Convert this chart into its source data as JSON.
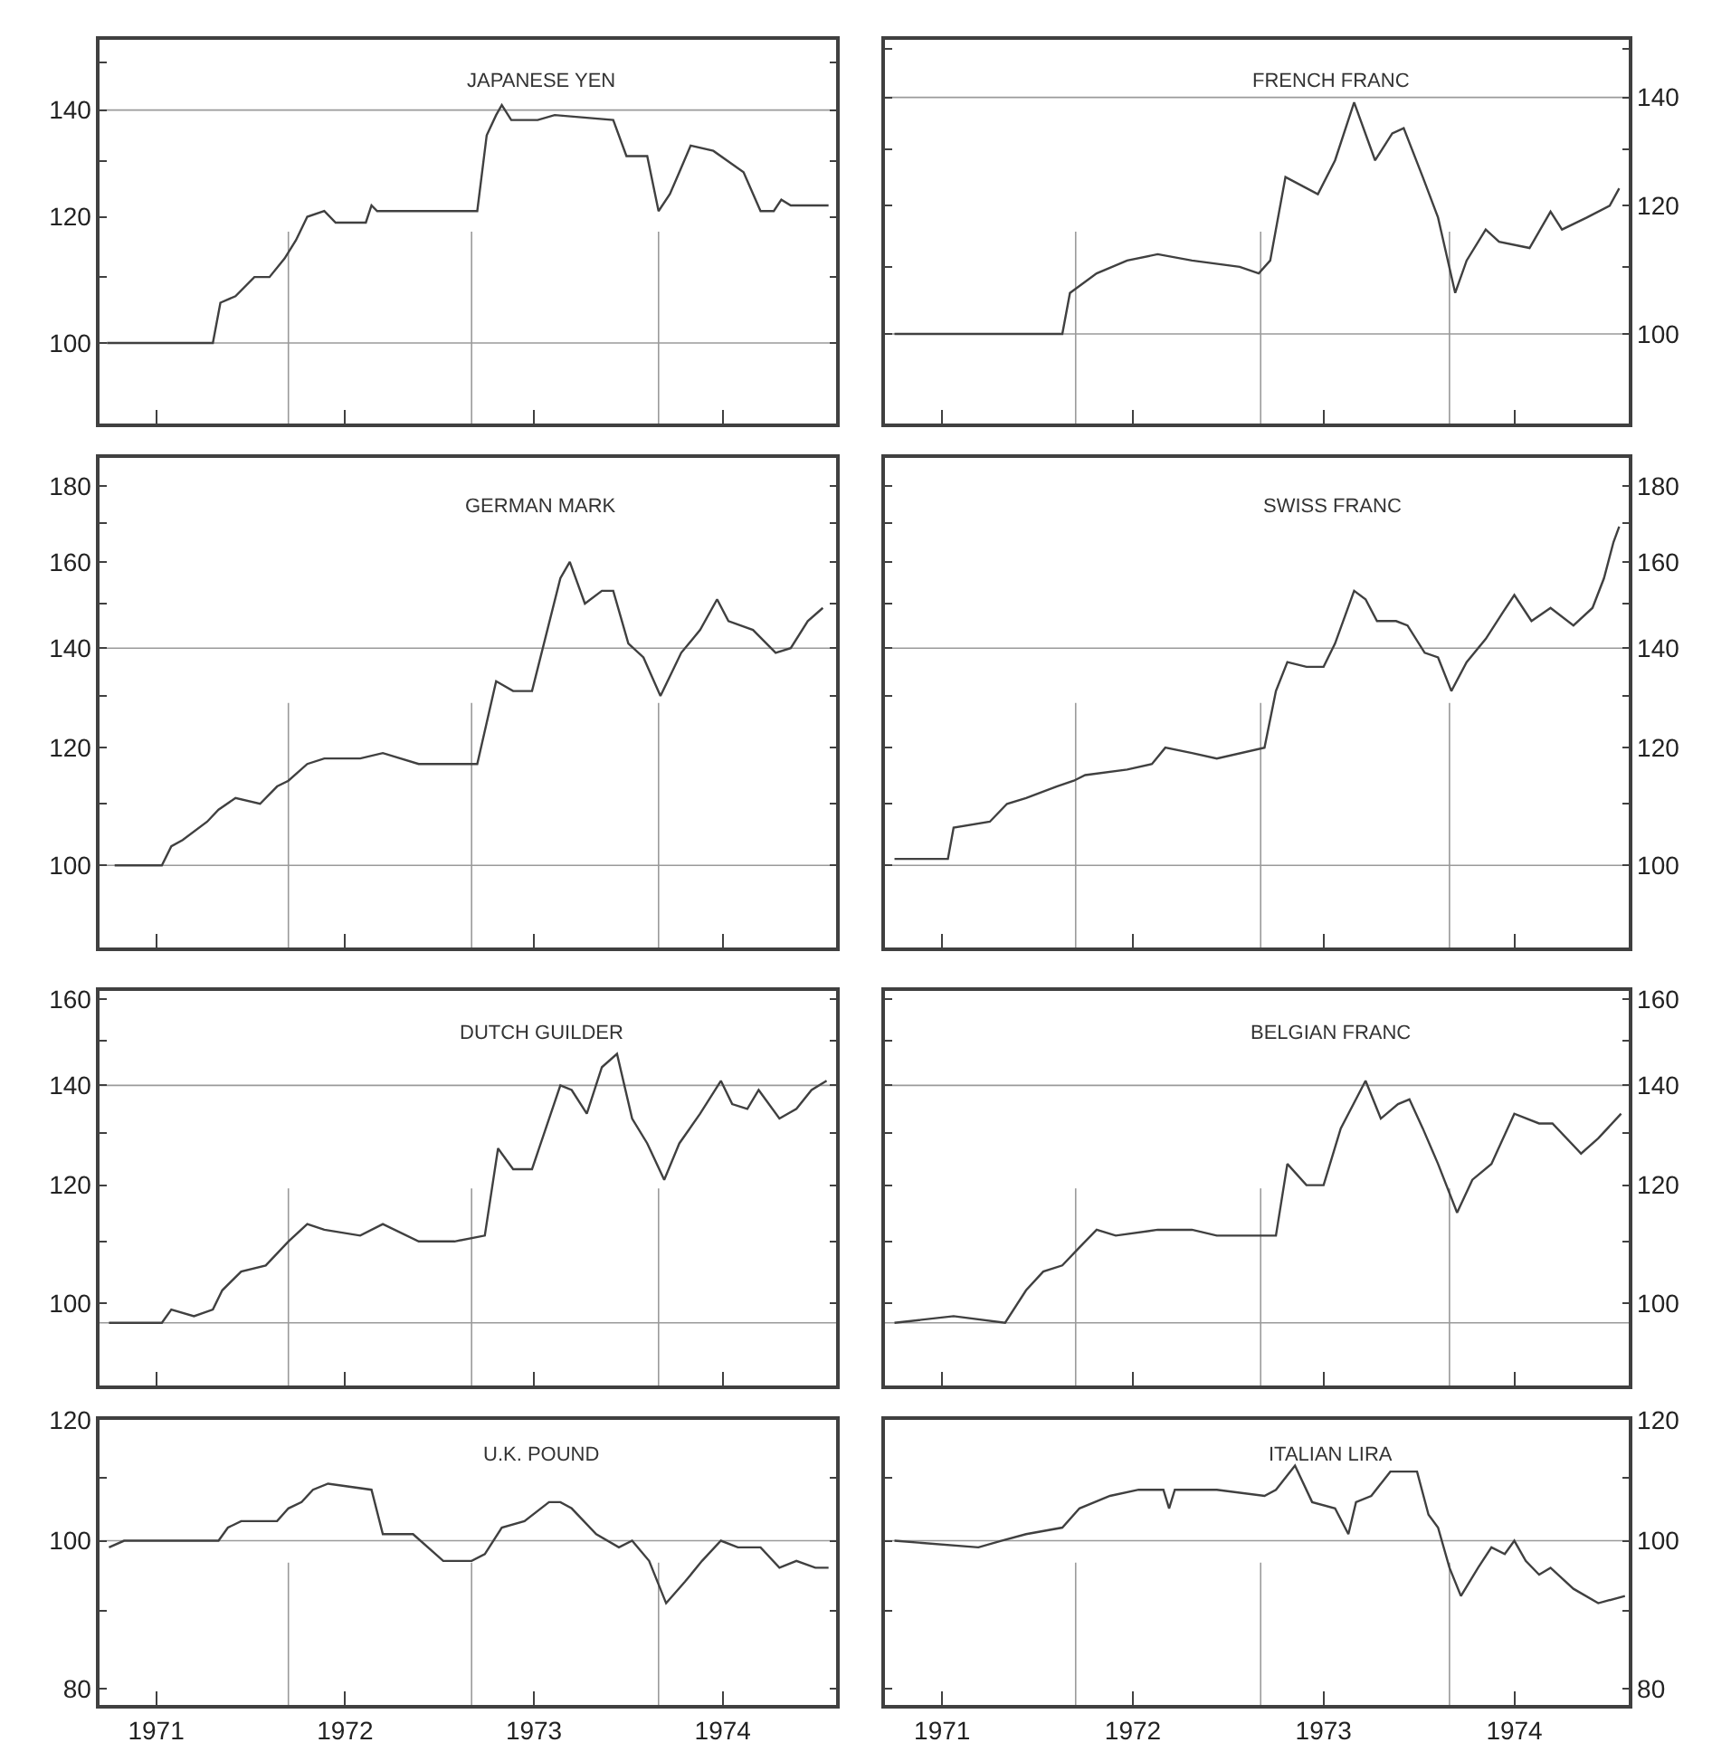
{
  "chart_data": [
    {
      "type": "line",
      "title": "JAPANESE YEN",
      "log": true,
      "grid": false,
      "tick_labels": "y",
      "xlim": [
        1970.7,
        1974.6
      ],
      "xticks": [
        1971,
        1972,
        1973,
        1974
      ],
      "ylim": [
        89,
        155
      ],
      "yticks": [
        100,
        {
          "value": 110,
          "label": null
        },
        120,
        {
          "value": 130,
          "label": null
        },
        140,
        {
          "value": 150,
          "label": null
        }
      ],
      "ref_lines": [
        {
          "axis": "y",
          "value": 100
        },
        {
          "axis": "y",
          "value": 140
        },
        {
          "axis": "x",
          "value": 1971.7
        },
        {
          "axis": "x",
          "value": 1972.67
        },
        {
          "axis": "x",
          "value": 1973.66
        }
      ],
      "series": [
        {
          "color": "#404040",
          "x": [
            1970.74,
            1971.3,
            1971.34,
            1971.42,
            1971.52,
            1971.6,
            1971.68,
            1971.74,
            1971.8,
            1971.89,
            1971.95,
            1972.11,
            1972.14,
            1972.17,
            1972.7,
            1972.75,
            1972.8,
            1972.83,
            1972.88,
            1973.02,
            1973.11,
            1973.42,
            1973.49,
            1973.6,
            1973.66,
            1973.72,
            1973.77,
            1973.83,
            1973.95,
            1974.11,
            1974.2,
            1974.27,
            1974.31,
            1974.36,
            1974.56
          ],
          "values": [
            100,
            100,
            106,
            107,
            110,
            110,
            113,
            116,
            120,
            121,
            119,
            119,
            122,
            121,
            121,
            135,
            139,
            141,
            138,
            138,
            139,
            138,
            131,
            131,
            121,
            124,
            128,
            133,
            132,
            128,
            121,
            121,
            123,
            122,
            122
          ]
        }
      ]
    },
    {
      "type": "line",
      "title": "FRENCH FRANC",
      "log": true,
      "grid": false,
      "tick_labels": "y",
      "xlim": [
        1970.7,
        1974.6
      ],
      "xticks": [
        1971,
        1972,
        1973,
        1974
      ],
      "ylim": [
        88,
        152
      ],
      "yticks": [
        100,
        {
          "value": 110,
          "label": null
        },
        120,
        {
          "value": 130,
          "label": null
        },
        140,
        {
          "value": 150,
          "label": null
        }
      ],
      "ref_lines": [
        {
          "axis": "y",
          "value": 100
        },
        {
          "axis": "y",
          "value": 140
        },
        {
          "axis": "x",
          "value": 1971.7
        },
        {
          "axis": "x",
          "value": 1972.67
        },
        {
          "axis": "x",
          "value": 1973.66
        }
      ],
      "series": [
        {
          "color": "#404040",
          "x": [
            1970.75,
            1971.63,
            1971.67,
            1971.81,
            1971.97,
            1972.13,
            1972.31,
            1972.56,
            1972.66,
            1972.72,
            1972.8,
            1972.97,
            1973.06,
            1973.16,
            1973.27,
            1973.36,
            1973.42,
            1973.52,
            1973.6,
            1973.69,
            1973.75,
            1973.85,
            1973.92,
            1974.08,
            1974.19,
            1974.25,
            1974.38,
            1974.5,
            1974.55
          ],
          "values": [
            100,
            100,
            106,
            109,
            111,
            112,
            111,
            110,
            109,
            111,
            125,
            122,
            128,
            139,
            128,
            133,
            134,
            125,
            118,
            106,
            111,
            116,
            114,
            113,
            119,
            116,
            118,
            120,
            123
          ]
        }
      ]
    },
    {
      "type": "line",
      "title": "GERMAN MARK",
      "log": true,
      "grid": false,
      "tick_labels": "y",
      "xlim": [
        1970.7,
        1974.6
      ],
      "xticks": [
        1971,
        1972,
        1973,
        1974
      ],
      "ylim": [
        88,
        188
      ],
      "yticks": [
        100,
        {
          "value": 110,
          "label": null
        },
        120,
        {
          "value": 130,
          "label": null
        },
        140,
        {
          "value": 150,
          "label": null
        },
        160,
        {
          "value": 170,
          "label": null
        },
        180
      ],
      "ref_lines": [
        {
          "axis": "y",
          "value": 100
        },
        {
          "axis": "y",
          "value": 140
        },
        {
          "axis": "x",
          "value": 1971.7
        },
        {
          "axis": "x",
          "value": 1972.67
        },
        {
          "axis": "x",
          "value": 1973.66
        }
      ],
      "series": [
        {
          "color": "#404040",
          "x": [
            1970.78,
            1971.03,
            1971.08,
            1971.14,
            1971.27,
            1971.33,
            1971.42,
            1971.55,
            1971.64,
            1971.7,
            1971.8,
            1971.89,
            1972.08,
            1972.2,
            1972.39,
            1972.58,
            1972.7,
            1972.8,
            1972.89,
            1972.99,
            1973.14,
            1973.19,
            1973.27,
            1973.36,
            1973.42,
            1973.5,
            1973.58,
            1973.67,
            1973.78,
            1973.88,
            1973.97,
            1974.03,
            1974.16,
            1974.28,
            1974.36,
            1974.45,
            1974.53
          ],
          "values": [
            100,
            100,
            103,
            104,
            107,
            109,
            111,
            110,
            113,
            114,
            117,
            118,
            118,
            119,
            117,
            117,
            117,
            133,
            131,
            131,
            156,
            160,
            150,
            153,
            153,
            141,
            138,
            130,
            139,
            144,
            151,
            146,
            144,
            139,
            140,
            146,
            149
          ]
        }
      ]
    },
    {
      "type": "line",
      "title": "SWISS FRANC",
      "log": true,
      "grid": false,
      "tick_labels": "y",
      "xlim": [
        1970.7,
        1974.6
      ],
      "xticks": [
        1971,
        1972,
        1973,
        1974
      ],
      "ylim": [
        88,
        188
      ],
      "yticks": [
        100,
        {
          "value": 110,
          "label": null
        },
        120,
        {
          "value": 130,
          "label": null
        },
        140,
        {
          "value": 150,
          "label": null
        },
        160,
        {
          "value": 170,
          "label": null
        },
        180
      ],
      "ref_lines": [
        {
          "axis": "y",
          "value": 100
        },
        {
          "axis": "y",
          "value": 140
        },
        {
          "axis": "x",
          "value": 1971.7
        },
        {
          "axis": "x",
          "value": 1972.67
        },
        {
          "axis": "x",
          "value": 1973.66
        }
      ],
      "series": [
        {
          "color": "#404040",
          "x": [
            1970.75,
            1971.03,
            1971.06,
            1971.25,
            1971.34,
            1971.44,
            1971.6,
            1971.69,
            1971.75,
            1971.97,
            1972.1,
            1972.17,
            1972.31,
            1972.44,
            1972.69,
            1972.75,
            1972.81,
            1972.91,
            1973.0,
            1973.06,
            1973.16,
            1973.22,
            1973.28,
            1973.38,
            1973.44,
            1973.53,
            1973.6,
            1973.67,
            1973.75,
            1973.85,
            1973.94,
            1974.0,
            1974.09,
            1974.19,
            1974.31,
            1974.41,
            1974.47,
            1974.52,
            1974.55
          ],
          "values": [
            101,
            101,
            106,
            107,
            110,
            111,
            113,
            114,
            115,
            116,
            117,
            120,
            119,
            118,
            120,
            131,
            137,
            136,
            136,
            141,
            153,
            151,
            146,
            146,
            145,
            139,
            138,
            131,
            137,
            142,
            148,
            152,
            146,
            149,
            145,
            149,
            156,
            165,
            169
          ]
        }
      ]
    },
    {
      "type": "line",
      "title": "DUTCH GUILDER",
      "log": true,
      "grid": false,
      "tick_labels": "y",
      "xlim": [
        1970.7,
        1974.6
      ],
      "xticks": [
        1971,
        1972,
        1973,
        1974
      ],
      "ylim": [
        88,
        162
      ],
      "yticks": [
        100,
        {
          "value": 110,
          "label": null
        },
        120,
        {
          "value": 130,
          "label": null
        },
        140,
        {
          "value": 150,
          "label": null
        },
        160
      ],
      "ref_lines": [
        {
          "axis": "y",
          "value": 97
        },
        {
          "axis": "y",
          "value": 140
        },
        {
          "axis": "x",
          "value": 1971.7
        },
        {
          "axis": "x",
          "value": 1972.67
        },
        {
          "axis": "x",
          "value": 1973.66
        }
      ],
      "series": [
        {
          "color": "#404040",
          "x": [
            1970.75,
            1971.03,
            1971.08,
            1971.2,
            1971.3,
            1971.35,
            1971.45,
            1971.58,
            1971.7,
            1971.8,
            1971.89,
            1972.08,
            1972.2,
            1972.39,
            1972.58,
            1972.74,
            1972.81,
            1972.89,
            1972.99,
            1973.14,
            1973.2,
            1973.28,
            1973.36,
            1973.44,
            1973.52,
            1973.6,
            1973.69,
            1973.77,
            1973.88,
            1973.99,
            1974.05,
            1974.13,
            1974.19,
            1974.3,
            1974.39,
            1974.47,
            1974.55
          ],
          "values": [
            97,
            97,
            99,
            98,
            99,
            102,
            105,
            106,
            110,
            113,
            112,
            111,
            113,
            110,
            110,
            111,
            127,
            123,
            123,
            140,
            139,
            134,
            144,
            147,
            133,
            128,
            121,
            128,
            134,
            141,
            136,
            135,
            139,
            133,
            135,
            139,
            141
          ]
        }
      ]
    },
    {
      "type": "line",
      "title": "BELGIAN FRANC",
      "log": true,
      "grid": false,
      "tick_labels": "y",
      "xlim": [
        1970.7,
        1974.6
      ],
      "xticks": [
        1971,
        1972,
        1973,
        1974
      ],
      "ylim": [
        88,
        162
      ],
      "yticks": [
        100,
        {
          "value": 110,
          "label": null
        },
        120,
        {
          "value": 130,
          "label": null
        },
        140,
        {
          "value": 150,
          "label": null
        },
        160
      ],
      "ref_lines": [
        {
          "axis": "y",
          "value": 97
        },
        {
          "axis": "y",
          "value": 140
        },
        {
          "axis": "x",
          "value": 1971.7
        },
        {
          "axis": "x",
          "value": 1972.67
        },
        {
          "axis": "x",
          "value": 1973.66
        }
      ],
      "series": [
        {
          "color": "#404040",
          "x": [
            1970.75,
            1971.06,
            1971.33,
            1971.44,
            1971.53,
            1971.63,
            1971.72,
            1971.81,
            1971.91,
            1972.13,
            1972.31,
            1972.44,
            1972.75,
            1972.81,
            1972.91,
            1973.0,
            1973.09,
            1973.22,
            1973.3,
            1973.39,
            1973.45,
            1973.52,
            1973.6,
            1973.7,
            1973.78,
            1973.88,
            1974.0,
            1974.13,
            1974.2,
            1974.35,
            1974.44,
            1974.56
          ],
          "values": [
            97,
            98,
            97,
            102,
            105,
            106,
            109,
            112,
            111,
            112,
            112,
            111,
            111,
            124,
            120,
            120,
            131,
            141,
            133,
            136,
            137,
            131,
            124,
            115,
            121,
            124,
            134,
            132,
            132,
            126,
            129,
            134
          ]
        }
      ]
    },
    {
      "type": "line",
      "title": "U.K. POUND",
      "log": true,
      "grid": false,
      "xlim": [
        1970.7,
        1974.6
      ],
      "xticks": [
        1971,
        1972,
        1973,
        1974
      ],
      "ylim": [
        78,
        120
      ],
      "yticks": [
        80,
        {
          "value": 90,
          "label": null
        },
        100,
        {
          "value": 110,
          "label": null
        },
        120
      ],
      "ref_lines": [
        {
          "axis": "y",
          "value": 100
        },
        {
          "axis": "x",
          "value": 1971.7
        },
        {
          "axis": "x",
          "value": 1972.67
        },
        {
          "axis": "x",
          "value": 1973.66
        }
      ],
      "series": [
        {
          "color": "#404040",
          "x": [
            1970.75,
            1970.83,
            1971.33,
            1971.38,
            1971.45,
            1971.64,
            1971.7,
            1971.77,
            1971.83,
            1971.91,
            1972.14,
            1972.2,
            1972.36,
            1972.52,
            1972.67,
            1972.74,
            1972.83,
            1972.95,
            1973.08,
            1973.14,
            1973.2,
            1973.33,
            1973.45,
            1973.52,
            1973.61,
            1973.7,
            1973.8,
            1973.89,
            1973.99,
            1974.08,
            1974.2,
            1974.3,
            1974.39,
            1974.49,
            1974.56
          ],
          "values": [
            99,
            100,
            100,
            102,
            103,
            103,
            105,
            106,
            108,
            109,
            108,
            101,
            101,
            97,
            97,
            98,
            102,
            103,
            106,
            106,
            105,
            101,
            99,
            100,
            97,
            91,
            94,
            97,
            100,
            99,
            99,
            96,
            97,
            96,
            96
          ]
        }
      ]
    },
    {
      "type": "line",
      "title": "ITALIAN LIRA",
      "log": true,
      "grid": false,
      "xlim": [
        1970.7,
        1974.6
      ],
      "xticks": [
        1971,
        1972,
        1973,
        1974
      ],
      "ylim": [
        78,
        120
      ],
      "yticks": [
        80,
        {
          "value": 90,
          "label": null
        },
        100,
        {
          "value": 110,
          "label": null
        },
        120
      ],
      "ref_lines": [
        {
          "axis": "y",
          "value": 100
        },
        {
          "axis": "x",
          "value": 1971.7
        },
        {
          "axis": "x",
          "value": 1972.67
        },
        {
          "axis": "x",
          "value": 1973.66
        }
      ],
      "series": [
        {
          "color": "#404040",
          "x": [
            1970.75,
            1971.19,
            1971.31,
            1971.44,
            1971.63,
            1971.72,
            1971.88,
            1972.03,
            1972.16,
            1972.19,
            1972.22,
            1972.44,
            1972.69,
            1972.75,
            1972.85,
            1972.94,
            1973.06,
            1973.13,
            1973.17,
            1973.25,
            1973.35,
            1973.49,
            1973.55,
            1973.6,
            1973.66,
            1973.72,
            1973.81,
            1973.88,
            1973.95,
            1974.0,
            1974.06,
            1974.13,
            1974.19,
            1974.31,
            1974.44,
            1974.58
          ],
          "values": [
            100,
            99,
            100,
            101,
            102,
            105,
            107,
            108,
            108,
            105,
            108,
            108,
            107,
            108,
            112,
            106,
            105,
            101,
            106,
            107,
            111,
            111,
            104,
            102,
            96,
            92,
            96,
            99,
            98,
            100,
            97,
            95,
            96,
            93,
            91,
            92
          ]
        }
      ]
    }
  ]
}
